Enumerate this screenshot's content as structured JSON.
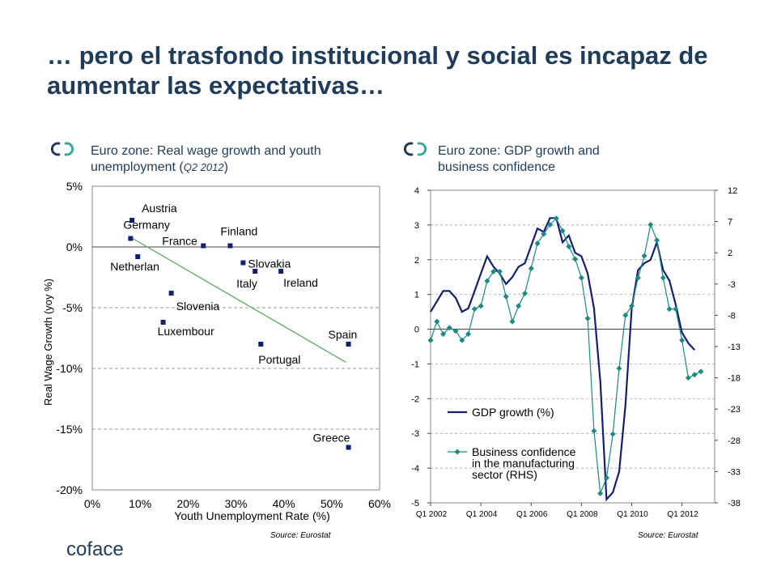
{
  "title": "… pero el trasfondo institucional y social es incapaz de aumentar las expectativas…",
  "brand": {
    "color": "#1f3c5a",
    "accent": "#3aa6a2",
    "logo_text": "coface"
  },
  "colors": {
    "scatter_marker": "#14206e",
    "trendline": "#5aa864",
    "gdp_line": "#14206e",
    "confidence_line": "#1a8a82"
  },
  "left_panel": {
    "heading": "Euro zone: Real wage growth and youth unemployment (",
    "heading_sub": "Q2 2012",
    "heading_close": ")",
    "source": "Source: Eurostat"
  },
  "right_panel": {
    "heading_line1": "Euro zone: GDP growth and",
    "heading_line2": "business confidence",
    "source": "Source: Eurostat"
  },
  "chart_data": [
    {
      "type": "scatter",
      "xlabel": "Youth Unemployment Rate (%)",
      "ylabel": "Real Wage Growth (yoy %)",
      "xlim": [
        0,
        60
      ],
      "ylim": [
        -20,
        5
      ],
      "x_ticks": [
        "0%",
        "10%",
        "20%",
        "30%",
        "40%",
        "50%",
        "60%"
      ],
      "y_ticks": [
        "5%",
        "0%",
        "-5%",
        "-10%",
        "-15%",
        "-20%"
      ],
      "grid": "horizontal dashed",
      "points": [
        {
          "label": "Austria",
          "x": 8.3,
          "y": 2.2
        },
        {
          "label": "Germany",
          "x": 8.0,
          "y": 0.7
        },
        {
          "label": "Netherlan",
          "x": 9.5,
          "y": -0.8
        },
        {
          "label": "France",
          "x": 23.2,
          "y": 0.1
        },
        {
          "label": "Finland",
          "x": 28.8,
          "y": 0.1
        },
        {
          "label": "Slovakia",
          "x": 31.5,
          "y": -1.3
        },
        {
          "label": "Italy",
          "x": 34.0,
          "y": -2.0
        },
        {
          "label": "Ireland",
          "x": 39.4,
          "y": -2.0
        },
        {
          "label": "Slovenia",
          "x": 16.5,
          "y": -3.8
        },
        {
          "label": "Luxembour",
          "x": 14.8,
          "y": -6.2
        },
        {
          "label": "Portugal",
          "x": 35.2,
          "y": -8.0
        },
        {
          "label": "Spain",
          "x": 53.5,
          "y": -8.0
        },
        {
          "label": "Greece",
          "x": 53.5,
          "y": -16.5
        }
      ],
      "trendline": {
        "x": [
          8.0,
          53.0
        ],
        "y": [
          0.8,
          -9.5
        ]
      }
    },
    {
      "type": "line",
      "ylim_left": [
        -5,
        4
      ],
      "ylim_right": [
        -38,
        12
      ],
      "y_ticks_left": [
        "4",
        "3",
        "2",
        "1",
        "0",
        "-1",
        "-2",
        "-3",
        "-4",
        "-5"
      ],
      "y_ticks_right": [
        "12",
        "7",
        "2",
        "-3",
        "-8",
        "-13",
        "-18",
        "-23",
        "-28",
        "-33",
        "-38"
      ],
      "x_ticks": [
        "Q1 2002",
        "Q1 2004",
        "Q1 2006",
        "Q1 2008",
        "Q1 2010",
        "Q1 2012"
      ],
      "x_tick_positions": [
        2002,
        2004,
        2006,
        2008,
        2010,
        2012
      ],
      "xlim": [
        2002,
        2013.3
      ],
      "grid": "horizontal dashed",
      "series": [
        {
          "name": "GDP growth (%)",
          "axis": "left",
          "x": [
            2002.0,
            2002.25,
            2002.5,
            2002.75,
            2003.0,
            2003.25,
            2003.5,
            2003.75,
            2004.0,
            2004.25,
            2004.5,
            2004.75,
            2005.0,
            2005.25,
            2005.5,
            2005.75,
            2006.0,
            2006.25,
            2006.5,
            2006.75,
            2007.0,
            2007.25,
            2007.5,
            2007.75,
            2008.0,
            2008.25,
            2008.5,
            2008.75,
            2009.0,
            2009.25,
            2009.5,
            2009.75,
            2010.0,
            2010.25,
            2010.5,
            2010.75,
            2011.0,
            2011.25,
            2011.5,
            2011.75,
            2012.0,
            2012.25,
            2012.5
          ],
          "values": [
            0.5,
            0.8,
            1.1,
            1.1,
            0.9,
            0.5,
            0.6,
            1.1,
            1.6,
            2.1,
            1.8,
            1.6,
            1.3,
            1.5,
            1.8,
            1.9,
            2.4,
            2.9,
            2.8,
            3.2,
            3.2,
            2.5,
            2.7,
            2.2,
            2.1,
            1.6,
            0.6,
            -1.5,
            -4.9,
            -4.7,
            -4.1,
            -2.2,
            0.6,
            1.7,
            1.9,
            2.0,
            2.5,
            1.7,
            1.4,
            0.7,
            -0.1,
            -0.4,
            -0.6
          ]
        },
        {
          "name": "Business confidence in the manufacturing sector (RHS)",
          "axis": "right",
          "x": [
            2002.0,
            2002.25,
            2002.5,
            2002.75,
            2003.0,
            2003.25,
            2003.5,
            2003.75,
            2004.0,
            2004.25,
            2004.5,
            2004.75,
            2005.0,
            2005.25,
            2005.5,
            2005.75,
            2006.0,
            2006.25,
            2006.5,
            2006.75,
            2007.0,
            2007.25,
            2007.5,
            2007.75,
            2008.0,
            2008.25,
            2008.5,
            2008.75,
            2009.0,
            2009.25,
            2009.5,
            2009.75,
            2010.0,
            2010.25,
            2010.5,
            2010.75,
            2011.0,
            2011.25,
            2011.5,
            2011.75,
            2012.0,
            2012.25,
            2012.5,
            2012.75
          ],
          "values": [
            -12,
            -9,
            -11,
            -10,
            -10.5,
            -12,
            -11,
            -7,
            -6.5,
            -2.5,
            -1,
            -1,
            -5,
            -9,
            -6.5,
            -4.5,
            -0.5,
            3.5,
            5,
            6.5,
            7.5,
            5.5,
            3,
            1,
            -2,
            -8.5,
            -26.5,
            -36.5,
            -34,
            -27,
            -16.5,
            -8,
            -6.5,
            -2,
            1.5,
            6.5,
            4,
            -2,
            -7,
            -7,
            -12,
            -18,
            -17.5,
            -17
          ]
        }
      ],
      "legend": "lower-left"
    }
  ]
}
